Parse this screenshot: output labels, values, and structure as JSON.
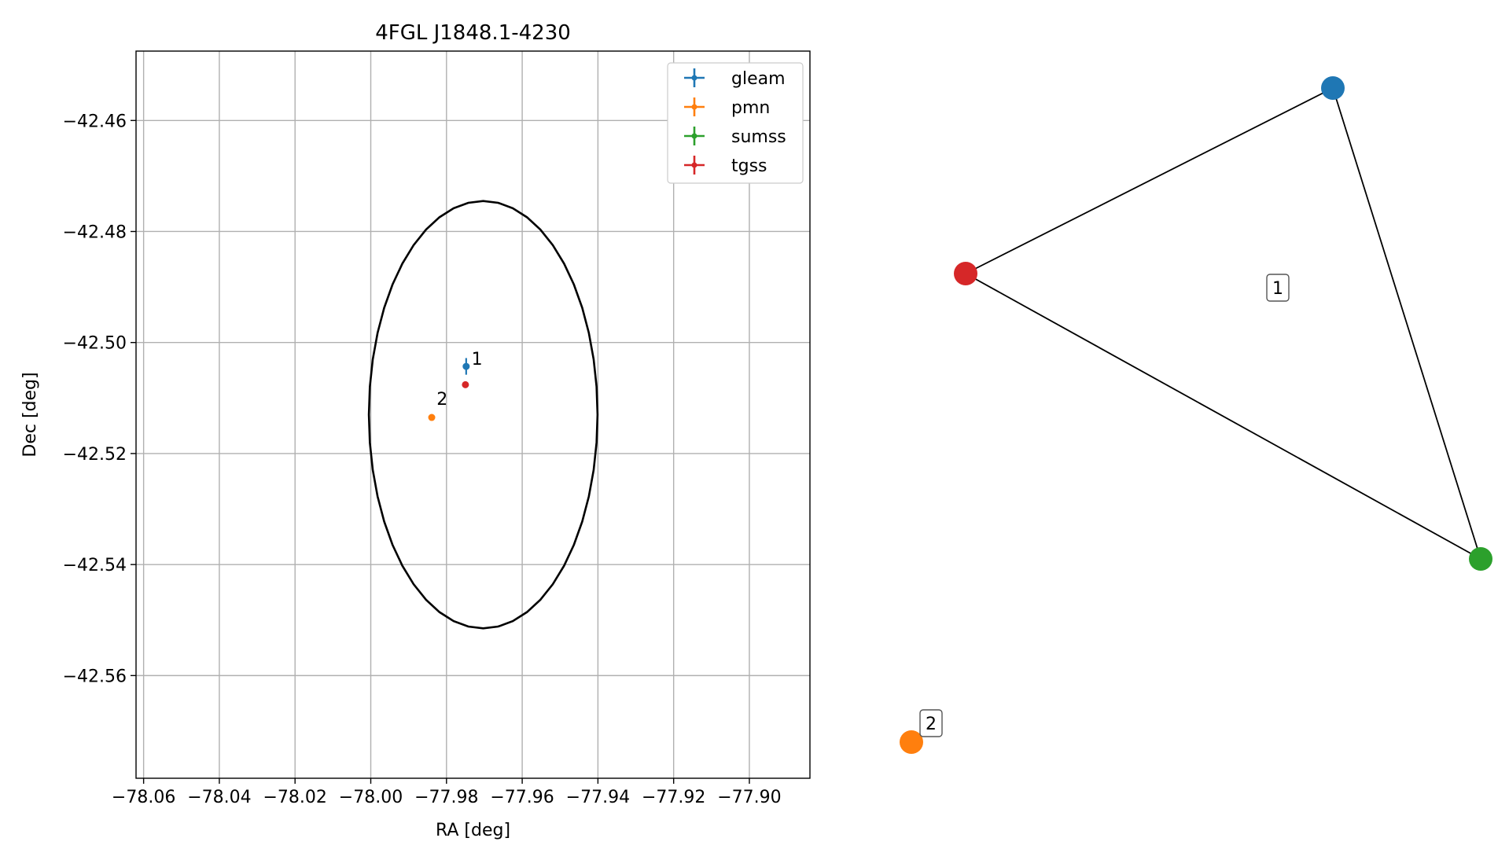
{
  "chart_data": [
    {
      "type": "scatter",
      "title": "4FGL J1848.1-4230",
      "xlabel": "RA [deg]",
      "ylabel": "Dec [deg]",
      "xlim": [
        -78.062,
        -77.884
      ],
      "ylim": [
        -42.5785,
        -42.4475
      ],
      "x_ticks": [
        -78.06,
        -78.04,
        -78.02,
        -78.0,
        -77.98,
        -77.96,
        -77.94,
        -77.92,
        -77.9
      ],
      "x_tick_labels": [
        "−78.06",
        "−78.04",
        "−78.02",
        "−78.00",
        "−77.98",
        "−77.96",
        "−77.94",
        "−77.92",
        "−77.90"
      ],
      "y_ticks": [
        -42.46,
        -42.48,
        -42.5,
        -42.52,
        -42.54,
        -42.56
      ],
      "y_tick_labels": [
        "−42.46",
        "−42.48",
        "−42.50",
        "−42.52",
        "−42.54",
        "−42.56"
      ],
      "grid": true,
      "legend": "top-right",
      "circle": {
        "center": [
          -77.9703,
          -42.513
        ],
        "radius_ra_deg": 0.0302,
        "radius_dec_deg": 0.0385,
        "color": "#000000"
      },
      "series": [
        {
          "name": "gleam",
          "color": "#1f77b4",
          "points": [
            {
              "x": -77.9748,
              "y": -42.5043,
              "xerr": 0.0003,
              "yerr": 0.0015
            }
          ]
        },
        {
          "name": "pmn",
          "color": "#ff7f0e",
          "points": [
            {
              "x": -77.9839,
              "y": -42.5135,
              "xerr": 0.0002,
              "yerr": 0.0002
            }
          ]
        },
        {
          "name": "sumss",
          "color": "#2ca02c",
          "points": []
        },
        {
          "name": "tgss",
          "color": "#d62728",
          "points": [
            {
              "x": -77.975,
              "y": -42.5076,
              "xerr": 0.0002,
              "yerr": 0.0002
            }
          ]
        }
      ],
      "point_labels": [
        {
          "text": "1",
          "x": -77.9734,
          "y": -42.504
        },
        {
          "text": "2",
          "x": -77.9826,
          "y": -42.5112
        }
      ]
    },
    {
      "type": "network",
      "nodes": [
        {
          "id": "gleam",
          "color": "#1f77b4"
        },
        {
          "id": "tgss",
          "color": "#d62728"
        },
        {
          "id": "sumss",
          "color": "#2ca02c"
        },
        {
          "id": "pmn",
          "color": "#ff7f0e"
        }
      ],
      "edges": [
        [
          "gleam",
          "tgss"
        ],
        [
          "gleam",
          "sumss"
        ],
        [
          "tgss",
          "sumss"
        ]
      ],
      "group_labels": [
        {
          "text": "1"
        },
        {
          "text": "2"
        }
      ]
    }
  ]
}
